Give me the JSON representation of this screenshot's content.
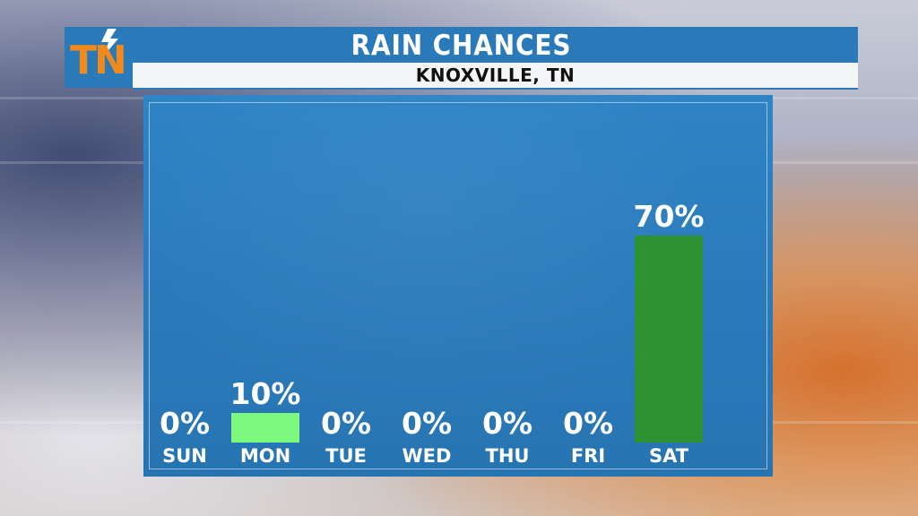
{
  "header": {
    "title": "RAIN CHANCES",
    "location": "KNOXVILLE, TN",
    "logo_text": "TN"
  },
  "colors": {
    "header_blue": "#2a79b8",
    "panel_blue": "#2a7bbb",
    "light_green": "#7dfa7d",
    "dark_green": "#2e9230",
    "logo_orange": "#f08a1c"
  },
  "chart_data": {
    "type": "bar",
    "title": "RAIN CHANCES",
    "categories": [
      "SUN",
      "MON",
      "TUE",
      "WED",
      "THU",
      "FRI",
      "SAT"
    ],
    "values": [
      0,
      10,
      0,
      0,
      0,
      0,
      70
    ],
    "value_labels": [
      "0%",
      "10%",
      "0%",
      "0%",
      "0%",
      "0%",
      "70%"
    ],
    "bar_colors": [
      "#7dfa7d",
      "#7dfa7d",
      "#7dfa7d",
      "#7dfa7d",
      "#7dfa7d",
      "#7dfa7d",
      "#2e9230"
    ],
    "unit": "%",
    "ylim": [
      0,
      100
    ],
    "grid": false,
    "legend": "none"
  }
}
